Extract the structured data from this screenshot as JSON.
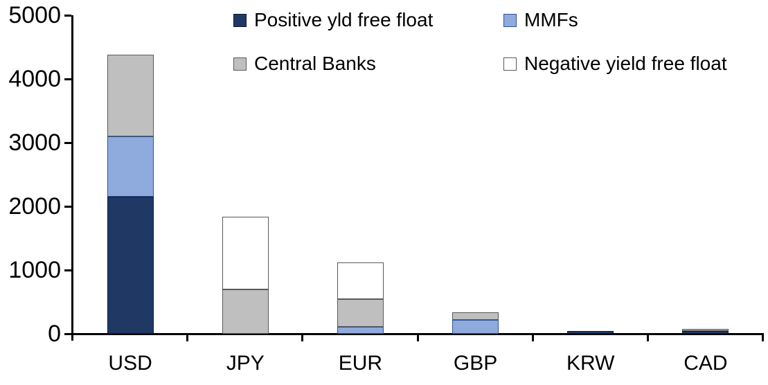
{
  "chart_data": {
    "type": "bar",
    "stacked": true,
    "title": "",
    "xlabel": "",
    "ylabel": "",
    "categories": [
      "USD",
      "JPY",
      "EUR",
      "GBP",
      "KRW",
      "CAD"
    ],
    "series": [
      {
        "name": "Positive yld free float",
        "color": "#1F3864",
        "border": "#0D1B33",
        "values": [
          2150,
          0,
          0,
          0,
          45,
          40
        ]
      },
      {
        "name": "MMFs",
        "color": "#8FAADC",
        "border": "#2E5597",
        "values": [
          950,
          0,
          110,
          220,
          0,
          0
        ]
      },
      {
        "name": "Central Banks",
        "color": "#BFBFBF",
        "border": "#595959",
        "values": [
          1280,
          700,
          435,
          115,
          0,
          35
        ]
      },
      {
        "name": "Negative yield free float",
        "color": "#FFFFFF",
        "border": "#595959",
        "values": [
          0,
          1140,
          575,
          0,
          0,
          0
        ]
      }
    ],
    "totals": [
      4380,
      1840,
      1120,
      335,
      45,
      75
    ],
    "ylim": [
      0,
      5000
    ],
    "yticks": [
      0,
      1000,
      2000,
      3000,
      4000,
      5000
    ],
    "grid": false,
    "legend_position": "top-center-two-rows",
    "legend_rows": [
      [
        "Positive yld free float",
        "MMFs"
      ],
      [
        "Central Banks",
        "Negative yield free float"
      ]
    ],
    "axis_color": "#000000",
    "background_color": "#FFFFFF"
  }
}
